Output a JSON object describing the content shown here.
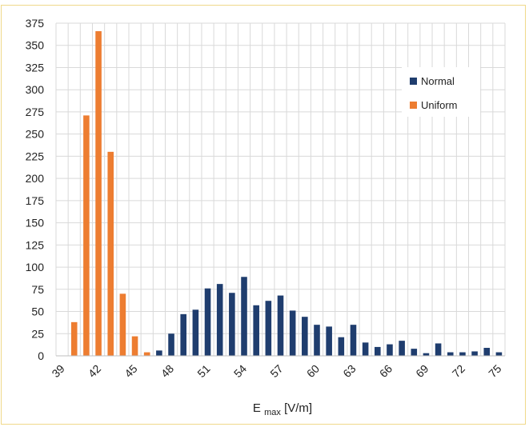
{
  "chart_data": {
    "type": "bar",
    "xlabel_main": "E",
    "xlabel_sub": "max",
    "xlabel_unit": " [V/m]",
    "ylim": [
      0,
      375
    ],
    "yticks": [
      0,
      25,
      50,
      75,
      100,
      125,
      150,
      175,
      200,
      225,
      250,
      275,
      300,
      325,
      350,
      375
    ],
    "xlim": [
      39,
      75
    ],
    "xticks": [
      39,
      42,
      45,
      48,
      51,
      54,
      57,
      60,
      63,
      66,
      69,
      72,
      75
    ],
    "grid": true,
    "legend_position": "upper-right",
    "series": [
      {
        "name": "Normal",
        "color": "#1f3d6e",
        "x": [
          46,
          47,
          48,
          49,
          50,
          51,
          52,
          53,
          54,
          55,
          56,
          57,
          58,
          59,
          60,
          61,
          62,
          63,
          64,
          65,
          66,
          67,
          68,
          69,
          70,
          71,
          72,
          73,
          74,
          75
        ],
        "values": [
          3,
          6,
          25,
          47,
          52,
          76,
          81,
          71,
          89,
          57,
          62,
          68,
          51,
          44,
          35,
          33,
          21,
          35,
          15,
          10,
          13,
          17,
          8,
          3,
          14,
          4,
          4,
          5,
          9,
          4
        ]
      },
      {
        "name": "Uniform",
        "color": "#ed7d31",
        "x": [
          40,
          41,
          42,
          43,
          44,
          45,
          46
        ],
        "values": [
          38,
          271,
          366,
          230,
          70,
          22,
          4
        ]
      }
    ]
  }
}
